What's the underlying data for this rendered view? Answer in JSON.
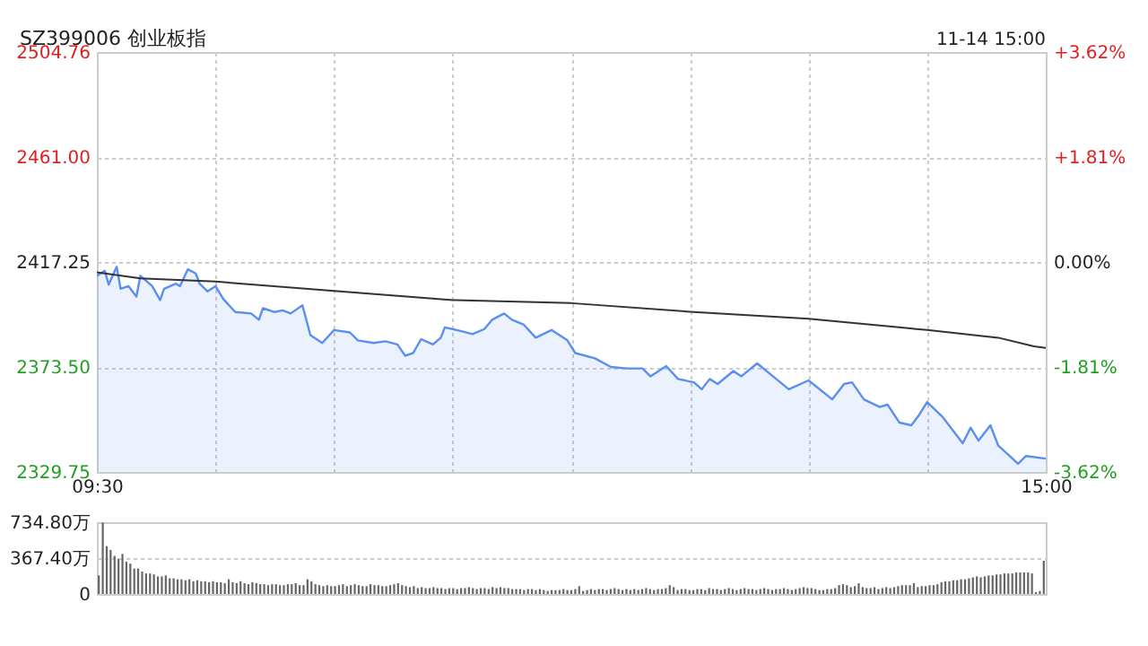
{
  "chart_data": [
    {
      "type": "line",
      "title": "SZ399006 创业板指",
      "annotations": [
        "11-14 15:00"
      ],
      "categories": [
        "09:30",
        null,
        null,
        null,
        null,
        null,
        null,
        null,
        null,
        null,
        null,
        null,
        null,
        null,
        null,
        null,
        null,
        null,
        null,
        null,
        null,
        null,
        null,
        null,
        null,
        null,
        null,
        null,
        null,
        null,
        null,
        null,
        null,
        null,
        null,
        null,
        null,
        null,
        null,
        null,
        null,
        null,
        null,
        null,
        null,
        null,
        null,
        null,
        null,
        null,
        null,
        null,
        null,
        null,
        null,
        null,
        null,
        null,
        null,
        null,
        null,
        null,
        null,
        null,
        null,
        null,
        null,
        null,
        null,
        null,
        null,
        null,
        null,
        null,
        null,
        null,
        null,
        null,
        null,
        null,
        null,
        null,
        null,
        null,
        null,
        null,
        null,
        null,
        null,
        null,
        null,
        null,
        null,
        null,
        null,
        null,
        null,
        null,
        null,
        null,
        null,
        null,
        null,
        null,
        null,
        null,
        null,
        null,
        null,
        null,
        null,
        null,
        null,
        null,
        null,
        null,
        null,
        null,
        null,
        null,
        null,
        null,
        null,
        null,
        null,
        null,
        null,
        null,
        null,
        null,
        null,
        null,
        null,
        null,
        null,
        null,
        null,
        null,
        null,
        null,
        null,
        null,
        null,
        null,
        null,
        null,
        null,
        null,
        null,
        null,
        null,
        null,
        null,
        null,
        null,
        null,
        null,
        null,
        null,
        null,
        null,
        null,
        null,
        null,
        null,
        null,
        null,
        null,
        null,
        null,
        null,
        null,
        null,
        null,
        null,
        null,
        null,
        null,
        null,
        null,
        null,
        null,
        null,
        null,
        null,
        null,
        null,
        null,
        null,
        null,
        null,
        null,
        null,
        null,
        null,
        null,
        null,
        null,
        null,
        null,
        null,
        null,
        null,
        null,
        null,
        null,
        null,
        null,
        null,
        null,
        null,
        null,
        null,
        null,
        null,
        null,
        null,
        null,
        null,
        null,
        null,
        null,
        null,
        null,
        null,
        null,
        null,
        null,
        null,
        null,
        null,
        null,
        null,
        null,
        null,
        null,
        null,
        null,
        null,
        null,
        "15:00"
      ],
      "ylim": [
        2329.75,
        2504.76
      ],
      "yticks": [
        {
          "value": 2329.75,
          "label": "2329.75"
        },
        {
          "value": 2373.5,
          "label": "2373.50"
        },
        {
          "value": 2417.25,
          "label": "2417.25"
        },
        {
          "value": 2461,
          "label": "2461.00"
        },
        {
          "value": 2504.76,
          "label": "2504.76"
        }
      ],
      "y2lim": [
        -3.62,
        3.62
      ],
      "y2ticks": [
        {
          "value": -3.62,
          "label": "-3.62%"
        },
        {
          "value": -1.81,
          "label": "-1.81%"
        },
        {
          "value": 0,
          "label": "0.00%"
        },
        {
          "value": 1.81,
          "label": "+1.81%"
        },
        {
          "value": 3.62,
          "label": "+3.62%"
        }
      ],
      "grid": true,
      "series": [
        {
          "type": "area",
          "color": "#5a8ff0",
          "values": [
            2411.5,
            null,
            2413.6,
            2407.8,
            null,
            2415.3,
            2406.1,
            null,
            2407.2,
            2405.0,
            2402.8,
            2411.5,
            null,
            null,
            2407.2,
            null,
            2401.4,
            2406.1,
            null,
            null,
            2408.2,
            2407.2,
            null,
            2414.2,
            null,
            2412.5,
            2408.2,
            null,
            2405.0,
            null,
            2407.2,
            null,
            2401.8,
            null,
            null,
            2396.4,
            null,
            null,
            null,
            2395.8,
            null,
            2393.2,
            2398.0,
            null,
            null,
            2396.4,
            null,
            2397.1,
            null,
            2395.8,
            null,
            null,
            2399.2,
            null,
            2386.8,
            null,
            null,
            2383.5,
            null,
            null,
            2388.9,
            null,
            null,
            null,
            2387.9,
            null,
            2384.6,
            null,
            null,
            null,
            2383.5,
            null,
            null,
            2384.2,
            null,
            null,
            2382.9,
            null,
            2378.2,
            null,
            2379.3,
            null,
            2385.1,
            null,
            null,
            2382.9,
            null,
            2385.7,
            2390.0,
            null,
            null,
            null,
            2388.5,
            null,
            null,
            2387.2,
            null,
            null,
            2389.3,
            null,
            2393.2,
            null,
            null,
            2395.8,
            null,
            2393.2,
            null,
            null,
            2391.1,
            null,
            null,
            2385.7,
            null,
            null,
            null,
            2388.9,
            null,
            null,
            null,
            2384.6,
            null,
            2379.3,
            null,
            null,
            null,
            null,
            2377.1,
            null,
            null,
            null,
            2373.5,
            null,
            null,
            null,
            2372.9,
            null,
            null,
            null,
            2372.9,
            null,
            2369.6,
            null,
            null,
            null,
            2373.9,
            null,
            null,
            2368.5,
            null,
            null,
            null,
            2367.1,
            null,
            2364.2,
            null,
            2368.5,
            null,
            2366.4,
            null,
            null,
            null,
            2371.8,
            null,
            2369.6,
            null,
            null,
            null,
            2375.0,
            null,
            null,
            null,
            2369.6,
            null,
            null,
            null,
            2364.2,
            null,
            null,
            null,
            null,
            2367.9,
            null,
            2365.3,
            null,
            null,
            null,
            2360.0,
            null,
            null,
            2366.4,
            null,
            2367.1,
            null,
            null,
            2360.0,
            null,
            null,
            null,
            2356.8,
            null,
            2357.8,
            null,
            null,
            2350.3,
            null,
            null,
            2349.2,
            null,
            2353.6,
            null,
            2358.9,
            null,
            null,
            null,
            2352.5,
            null,
            null,
            null,
            null,
            2341.7,
            null,
            2348.2,
            null,
            2342.8,
            null,
            null,
            2349.2,
            null,
            2340.7,
            null,
            null,
            null,
            null,
            2333.2,
            null,
            2336.4,
            null,
            null,
            null,
            null,
            2335.3
          ]
        },
        {
          "type": "line",
          "color": "#333333",
          "values": [
            2413.0,
            null,
            null,
            null,
            null,
            null,
            null,
            null,
            null,
            null,
            null,
            2410.4,
            null,
            null,
            null,
            null,
            null,
            null,
            null,
            null,
            null,
            null,
            null,
            null,
            null,
            null,
            null,
            null,
            null,
            null,
            2409.1,
            null,
            null,
            null,
            null,
            null,
            null,
            null,
            null,
            null,
            null,
            null,
            null,
            null,
            null,
            null,
            null,
            null,
            null,
            null,
            null,
            null,
            null,
            null,
            null,
            null,
            null,
            null,
            null,
            null,
            2405.2,
            null,
            null,
            null,
            null,
            null,
            null,
            null,
            null,
            null,
            null,
            null,
            null,
            null,
            null,
            null,
            null,
            null,
            null,
            null,
            null,
            null,
            null,
            null,
            null,
            null,
            null,
            null,
            null,
            null,
            2401.4,
            null,
            null,
            null,
            null,
            null,
            null,
            null,
            null,
            null,
            null,
            null,
            null,
            null,
            null,
            null,
            null,
            null,
            null,
            null,
            null,
            null,
            null,
            null,
            null,
            null,
            null,
            null,
            null,
            null,
            2400.1,
            null,
            null,
            null,
            null,
            null,
            null,
            null,
            null,
            null,
            null,
            null,
            null,
            null,
            null,
            null,
            null,
            null,
            null,
            null,
            null,
            null,
            null,
            null,
            null,
            null,
            null,
            null,
            null,
            null,
            null,
            2396.4,
            null,
            null,
            null,
            null,
            null,
            null,
            null,
            null,
            null,
            null,
            null,
            null,
            null,
            null,
            null,
            null,
            null,
            null,
            null,
            null,
            null,
            null,
            null,
            null,
            null,
            null,
            null,
            null,
            2393.6,
            null,
            null,
            null,
            null,
            null,
            null,
            null,
            null,
            null,
            null,
            null,
            null,
            null,
            null,
            null,
            null,
            null,
            null,
            null,
            null,
            null,
            null,
            null,
            null,
            null,
            null,
            null,
            null,
            null,
            2388.9,
            null,
            null,
            null,
            null,
            null,
            null,
            null,
            null,
            null,
            null,
            null,
            null,
            null,
            null,
            null,
            null,
            null,
            2385.7,
            null,
            null,
            null,
            null,
            null,
            null,
            null,
            null,
            2382.1,
            null,
            null,
            2381.4
          ]
        }
      ]
    },
    {
      "type": "bar",
      "tick_labels": "y",
      "grid": "y",
      "color": "#666666",
      "categories": [
        null,
        null,
        null,
        null,
        null,
        null,
        null,
        null,
        null,
        null,
        null,
        null,
        null,
        null,
        null,
        null,
        null,
        null,
        null,
        null,
        null,
        null,
        null,
        null,
        null,
        null,
        null,
        null,
        null,
        null,
        null,
        null,
        null,
        null,
        null,
        null,
        null,
        null,
        null,
        null,
        null,
        null,
        null,
        null,
        null,
        null,
        null,
        null,
        null,
        null,
        null,
        null,
        null,
        null,
        null,
        null,
        null,
        null,
        null,
        null,
        null,
        null,
        null,
        null,
        null,
        null,
        null,
        null,
        null,
        null,
        null,
        null,
        null,
        null,
        null,
        null,
        null,
        null,
        null,
        null,
        null,
        null,
        null,
        null,
        null,
        null,
        null,
        null,
        null,
        null,
        null,
        null,
        null,
        null,
        null,
        null,
        null,
        null,
        null,
        null,
        null,
        null,
        null,
        null,
        null,
        null,
        null,
        null,
        null,
        null,
        null,
        null,
        null,
        null,
        null,
        null,
        null,
        null,
        null,
        null,
        null,
        null,
        null,
        null,
        null,
        null,
        null,
        null,
        null,
        null,
        null,
        null,
        null,
        null,
        null,
        null,
        null,
        null,
        null,
        null,
        null,
        null,
        null,
        null,
        null,
        null,
        null,
        null,
        null,
        null,
        null,
        null,
        null,
        null,
        null,
        null,
        null,
        null,
        null,
        null,
        null,
        null,
        null,
        null,
        null,
        null,
        null,
        null,
        null,
        null,
        null,
        null,
        null,
        null,
        null,
        null,
        null,
        null,
        null,
        null,
        null,
        null,
        null,
        null,
        null,
        null,
        null,
        null,
        null,
        null,
        null,
        null,
        null,
        null,
        null,
        null,
        null,
        null,
        null,
        null,
        null,
        null,
        null,
        null,
        null,
        null,
        null,
        null,
        null,
        null,
        null,
        null,
        null,
        null,
        null,
        null,
        null,
        null,
        null,
        null,
        null,
        null,
        null,
        null,
        null,
        null,
        null,
        null,
        null,
        null,
        null,
        null,
        null,
        null,
        null,
        null,
        null,
        null,
        null,
        null,
        null
      ],
      "ylim": [
        0,
        734.8
      ],
      "yticks": [
        {
          "value": 0,
          "label": "0"
        },
        {
          "value": 367.4,
          "label": "367.40万"
        },
        {
          "value": 734.8,
          "label": "734.80万"
        }
      ],
      "values": [
        190,
        730,
        490,
        450,
        390,
        360,
        410,
        330,
        310,
        260,
        260,
        230,
        210,
        210,
        200,
        180,
        180,
        190,
        160,
        160,
        150,
        150,
        140,
        150,
        130,
        140,
        130,
        130,
        120,
        130,
        120,
        120,
        110,
        150,
        120,
        110,
        130,
        110,
        100,
        120,
        110,
        100,
        100,
        90,
        100,
        100,
        90,
        90,
        100,
        100,
        110,
        90,
        90,
        150,
        130,
        100,
        90,
        80,
        90,
        80,
        80,
        90,
        100,
        80,
        90,
        100,
        90,
        80,
        80,
        100,
        90,
        90,
        80,
        80,
        90,
        100,
        110,
        90,
        80,
        70,
        80,
        60,
        70,
        60,
        60,
        70,
        60,
        60,
        50,
        60,
        60,
        50,
        60,
        60,
        70,
        60,
        50,
        60,
        60,
        50,
        70,
        60,
        70,
        60,
        60,
        50,
        50,
        50,
        40,
        50,
        50,
        40,
        50,
        40,
        30,
        40,
        40,
        40,
        50,
        40,
        40,
        50,
        80,
        30,
        40,
        50,
        40,
        50,
        50,
        40,
        50,
        60,
        50,
        40,
        50,
        40,
        50,
        40,
        50,
        60,
        50,
        40,
        50,
        50,
        60,
        90,
        70,
        40,
        50,
        50,
        40,
        40,
        50,
        50,
        40,
        60,
        50,
        50,
        40,
        50,
        60,
        50,
        40,
        50,
        60,
        50,
        50,
        40,
        50,
        60,
        50,
        40,
        50,
        50,
        60,
        50,
        40,
        50,
        60,
        70,
        60,
        60,
        50,
        40,
        40,
        50,
        50,
        60,
        90,
        100,
        90,
        70,
        80,
        110,
        70,
        60,
        60,
        70,
        50,
        60,
        70,
        60,
        70,
        80,
        90,
        90,
        90,
        110,
        70,
        80,
        80,
        90,
        90,
        100,
        120,
        130,
        130,
        140,
        140,
        150,
        150,
        160,
        170,
        180,
        170,
        180,
        190,
        190,
        200,
        200,
        210,
        210,
        210,
        220,
        220,
        220,
        220,
        210,
        20,
        30,
        340
      ]
    }
  ]
}
